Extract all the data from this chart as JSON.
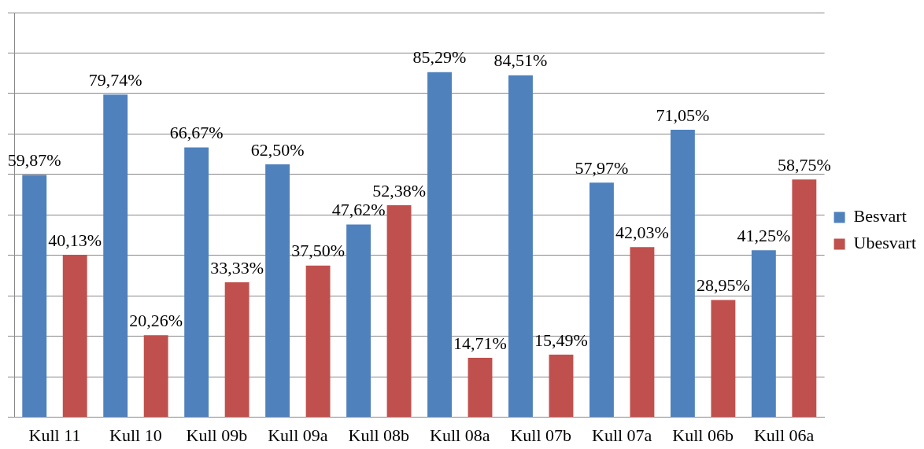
{
  "chart_data": {
    "type": "bar",
    "categories": [
      "Kull 11",
      "Kull 10",
      "Kull 09b",
      "Kull 09a",
      "Kull 08b",
      "Kull 08a",
      "Kull 07b",
      "Kull 07a",
      "Kull 06b",
      "Kull 06a"
    ],
    "series": [
      {
        "name": "Besvart",
        "color": "#4f81bd",
        "values": [
          59.87,
          79.74,
          66.67,
          62.5,
          47.62,
          85.29,
          84.51,
          57.97,
          71.05,
          41.25
        ],
        "value_labels": [
          "59,87%",
          "79,74%",
          "66,67%",
          "62,50%",
          "47,62%",
          "85,29%",
          "84,51%",
          "57,97%",
          "71,05%",
          "41,25%"
        ]
      },
      {
        "name": "Ubesvart",
        "color": "#c0504d",
        "values": [
          40.13,
          20.26,
          33.33,
          37.5,
          52.38,
          14.71,
          15.49,
          42.03,
          28.95,
          58.75
        ],
        "value_labels": [
          "40,13%",
          "20,26%",
          "33,33%",
          "37,50%",
          "52,38%",
          "14,71%",
          "15,49%",
          "42,03%",
          "28,95%",
          "58,75%"
        ]
      }
    ],
    "ylim": [
      0,
      100
    ],
    "yticks": [
      {
        "value": 0,
        "label": null
      },
      {
        "value": 10,
        "label": null
      },
      {
        "value": 20,
        "label": null
      },
      {
        "value": 30,
        "label": null
      },
      {
        "value": 40,
        "label": null
      },
      {
        "value": 50,
        "label": null
      },
      {
        "value": 60,
        "label": null
      },
      {
        "value": 70,
        "label": null
      },
      {
        "value": 80,
        "label": null
      },
      {
        "value": 90,
        "label": null
      },
      {
        "value": 100,
        "label": null
      }
    ],
    "tick_labels": "x",
    "grid": "y",
    "legend": "right"
  }
}
